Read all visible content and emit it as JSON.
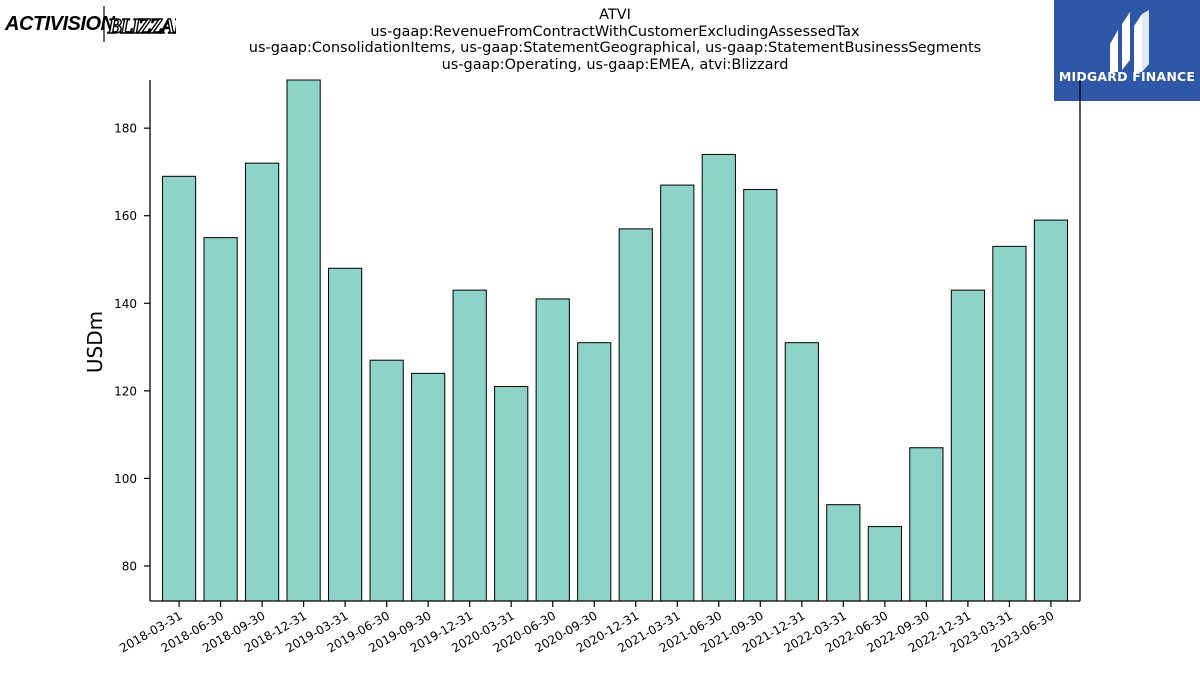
{
  "header": {
    "title_lines": [
      "ATVI",
      "us-gaap:RevenueFromContractWithCustomerExcludingAssessedTax",
      "us-gaap:ConsolidationItems, us-gaap:StatementGeographical, us-gaap:StatementBusinessSegments",
      "us-gaap:Operating, us-gaap:EMEA, atvi:Blizzard"
    ]
  },
  "logos": {
    "left_company": "ACTIVISION",
    "left_sub": "BLIZZARD",
    "right_brand": "MIDGARD FINANCE"
  },
  "colors": {
    "bar_fill": "#8dd3c7",
    "bar_edge": "#000000",
    "brand_blue": "#2f57a8"
  },
  "chart_data": {
    "type": "bar",
    "ylabel": "USDm",
    "xlabel": "",
    "ylim": [
      72,
      191
    ],
    "yticks": [
      80,
      100,
      120,
      140,
      160,
      180
    ],
    "grid": false,
    "categories": [
      "2018-03-31",
      "2018-06-30",
      "2018-09-30",
      "2018-12-31",
      "2019-03-31",
      "2019-06-30",
      "2019-09-30",
      "2019-12-31",
      "2020-03-31",
      "2020-06-30",
      "2020-09-30",
      "2020-12-31",
      "2021-03-31",
      "2021-06-30",
      "2021-09-30",
      "2021-12-31",
      "2022-03-31",
      "2022-06-30",
      "2022-09-30",
      "2022-12-31",
      "2023-03-31",
      "2023-06-30"
    ],
    "values": [
      169,
      155,
      172,
      191,
      148,
      127,
      124,
      143,
      121,
      141,
      131,
      157,
      167,
      174,
      166,
      131,
      94,
      89,
      107,
      143,
      153,
      159
    ]
  }
}
